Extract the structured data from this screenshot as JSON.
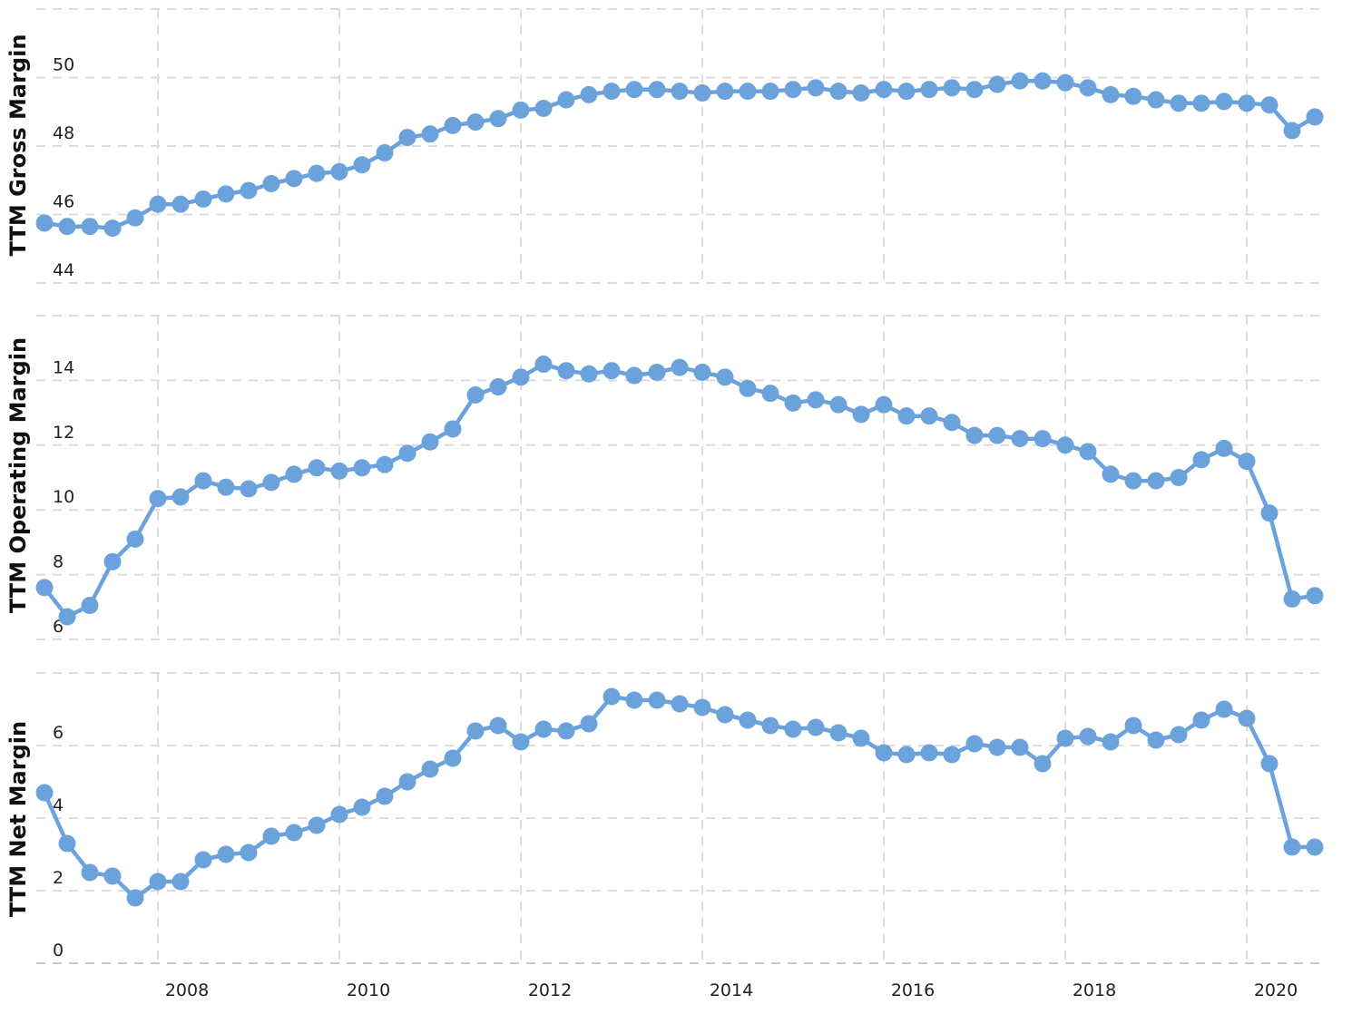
{
  "colors": {
    "series": "#6ca2db",
    "grid": "#dcdcdc"
  },
  "x_axis": {
    "ticks": [
      2008,
      2010,
      2012,
      2014,
      2016,
      2018,
      2020
    ],
    "labels": [
      "2008",
      "2010",
      "2012",
      "2014",
      "2016",
      "2018",
      "2020"
    ]
  },
  "chart_data": [
    {
      "type": "line",
      "ylabel": "TTM Gross Margin",
      "ylim": [
        44,
        52
      ],
      "yticks": [
        44,
        46,
        48,
        50
      ],
      "ytick_labels": [
        "44",
        "46",
        "48",
        "50"
      ],
      "grid": true,
      "x": [
        2006.75,
        2007.0,
        2007.25,
        2007.5,
        2007.75,
        2008.0,
        2008.25,
        2008.5,
        2008.75,
        2009.0,
        2009.25,
        2009.5,
        2009.75,
        2010.0,
        2010.25,
        2010.5,
        2010.75,
        2011.0,
        2011.25,
        2011.5,
        2011.75,
        2012.0,
        2012.25,
        2012.5,
        2012.75,
        2013.0,
        2013.25,
        2013.5,
        2013.75,
        2014.0,
        2014.25,
        2014.5,
        2014.75,
        2015.0,
        2015.25,
        2015.5,
        2015.75,
        2016.0,
        2016.25,
        2016.5,
        2016.75,
        2017.0,
        2017.25,
        2017.5,
        2017.75,
        2018.0,
        2018.25,
        2018.5,
        2018.75,
        2019.0,
        2019.25,
        2019.5,
        2019.75,
        2020.0,
        2020.25,
        2020.5,
        2020.75
      ],
      "values": [
        45.75,
        45.65,
        45.65,
        45.6,
        45.9,
        46.3,
        46.3,
        46.45,
        46.6,
        46.7,
        46.9,
        47.05,
        47.2,
        47.25,
        47.45,
        47.8,
        48.25,
        48.35,
        48.6,
        48.7,
        48.8,
        49.05,
        49.1,
        49.35,
        49.5,
        49.6,
        49.65,
        49.65,
        49.6,
        49.55,
        49.6,
        49.6,
        49.6,
        49.65,
        49.7,
        49.6,
        49.55,
        49.65,
        49.6,
        49.65,
        49.7,
        49.65,
        49.8,
        49.9,
        49.9,
        49.85,
        49.7,
        49.5,
        49.45,
        49.35,
        49.25,
        49.25,
        49.3,
        49.25,
        49.2,
        48.45,
        48.85
      ]
    },
    {
      "type": "line",
      "ylabel": "TTM Operating Margin",
      "ylim": [
        6,
        16
      ],
      "yticks": [
        6,
        8,
        10,
        12,
        14
      ],
      "ytick_labels": [
        "6",
        "8",
        "10",
        "12",
        "14"
      ],
      "grid": true,
      "x": [
        2006.75,
        2007.0,
        2007.25,
        2007.5,
        2007.75,
        2008.0,
        2008.25,
        2008.5,
        2008.75,
        2009.0,
        2009.25,
        2009.5,
        2009.75,
        2010.0,
        2010.25,
        2010.5,
        2010.75,
        2011.0,
        2011.25,
        2011.5,
        2011.75,
        2012.0,
        2012.25,
        2012.5,
        2012.75,
        2013.0,
        2013.25,
        2013.5,
        2013.75,
        2014.0,
        2014.25,
        2014.5,
        2014.75,
        2015.0,
        2015.25,
        2015.5,
        2015.75,
        2016.0,
        2016.25,
        2016.5,
        2016.75,
        2017.0,
        2017.25,
        2017.5,
        2017.75,
        2018.0,
        2018.25,
        2018.5,
        2018.75,
        2019.0,
        2019.25,
        2019.5,
        2019.75,
        2020.0,
        2020.25,
        2020.5,
        2020.75
      ],
      "values": [
        7.6,
        6.7,
        7.05,
        8.4,
        9.1,
        10.35,
        10.4,
        10.9,
        10.7,
        10.65,
        10.85,
        11.1,
        11.3,
        11.2,
        11.3,
        11.4,
        11.75,
        12.1,
        12.5,
        13.55,
        13.8,
        14.1,
        14.5,
        14.3,
        14.2,
        14.3,
        14.15,
        14.25,
        14.4,
        14.25,
        14.1,
        13.75,
        13.6,
        13.3,
        13.4,
        13.25,
        12.95,
        13.25,
        12.9,
        12.9,
        12.7,
        12.3,
        12.3,
        12.2,
        12.2,
        12.0,
        11.8,
        11.1,
        10.9,
        10.9,
        11.0,
        11.55,
        11.9,
        11.5,
        9.9,
        7.25,
        7.35
      ]
    },
    {
      "type": "line",
      "ylabel": "TTM Net Margin",
      "ylim": [
        0,
        8
      ],
      "yticks": [
        0,
        2,
        4,
        6
      ],
      "ytick_labels": [
        "0",
        "2",
        "4",
        "6"
      ],
      "grid": true,
      "x": [
        2006.75,
        2007.0,
        2007.25,
        2007.5,
        2007.75,
        2008.0,
        2008.25,
        2008.5,
        2008.75,
        2009.0,
        2009.25,
        2009.5,
        2009.75,
        2010.0,
        2010.25,
        2010.5,
        2010.75,
        2011.0,
        2011.25,
        2011.5,
        2011.75,
        2012.0,
        2012.25,
        2012.5,
        2012.75,
        2013.0,
        2013.25,
        2013.5,
        2013.75,
        2014.0,
        2014.25,
        2014.5,
        2014.75,
        2015.0,
        2015.25,
        2015.5,
        2015.75,
        2016.0,
        2016.25,
        2016.5,
        2016.75,
        2017.0,
        2017.25,
        2017.5,
        2017.75,
        2018.0,
        2018.25,
        2018.5,
        2018.75,
        2019.0,
        2019.25,
        2019.5,
        2019.75,
        2020.0,
        2020.25,
        2020.5,
        2020.75
      ],
      "values": [
        4.7,
        3.3,
        2.5,
        2.4,
        1.8,
        2.25,
        2.25,
        2.85,
        3.0,
        3.05,
        3.5,
        3.6,
        3.8,
        4.1,
        4.3,
        4.6,
        5.0,
        5.35,
        5.65,
        6.4,
        6.55,
        6.1,
        6.45,
        6.4,
        6.6,
        7.35,
        7.25,
        7.25,
        7.15,
        7.05,
        6.85,
        6.7,
        6.55,
        6.45,
        6.5,
        6.35,
        6.2,
        5.8,
        5.75,
        5.8,
        5.75,
        6.05,
        5.95,
        5.95,
        5.5,
        6.2,
        6.25,
        6.1,
        6.55,
        6.15,
        6.3,
        6.7,
        7.0,
        6.75,
        5.5,
        3.2,
        3.2
      ]
    }
  ]
}
